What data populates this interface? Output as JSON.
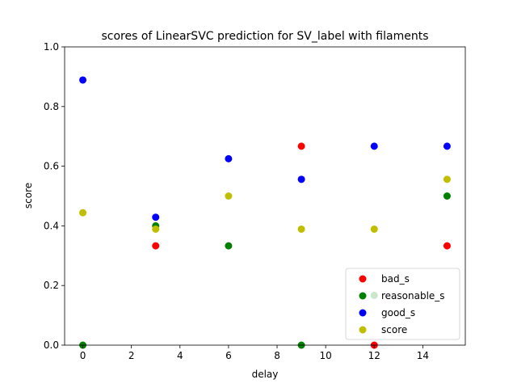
{
  "chart_data": {
    "type": "scatter",
    "title": "scores of LinearSVC prediction for SV_label with filaments",
    "xlabel": "delay",
    "ylabel": "score",
    "xlim": [
      -0.75,
      15.75
    ],
    "ylim": [
      0,
      1.0
    ],
    "xticks": [
      0,
      2,
      4,
      6,
      8,
      10,
      12,
      14
    ],
    "yticks": [
      0.0,
      0.2,
      0.4,
      0.6,
      0.8,
      1.0
    ],
    "xtick_labels": [
      "0",
      "2",
      "4",
      "6",
      "8",
      "10",
      "12",
      "14"
    ],
    "ytick_labels": [
      "0.0",
      "0.2",
      "0.4",
      "0.6",
      "0.8",
      "1.0"
    ],
    "grid": false,
    "legend_position": "bottom-right",
    "series": [
      {
        "name": "bad_s",
        "color": "#ff0000",
        "x": [
          3,
          9,
          12,
          15
        ],
        "y": [
          0.333,
          0.667,
          0.0,
          0.333
        ]
      },
      {
        "name": "reasonable_s",
        "color": "#008000",
        "x": [
          0,
          3,
          6,
          9,
          12,
          15
        ],
        "y": [
          0.0,
          0.4,
          0.333,
          0.0,
          0.167,
          0.5
        ]
      },
      {
        "name": "good_s",
        "color": "#0000ff",
        "x": [
          0,
          3,
          6,
          9,
          12,
          15
        ],
        "y": [
          0.889,
          0.429,
          0.625,
          0.556,
          0.667,
          0.667
        ]
      },
      {
        "name": "score",
        "color": "#bfbf00",
        "x": [
          0,
          3,
          6,
          9,
          12,
          15
        ],
        "y": [
          0.444,
          0.389,
          0.5,
          0.389,
          0.389,
          0.556
        ]
      }
    ]
  }
}
